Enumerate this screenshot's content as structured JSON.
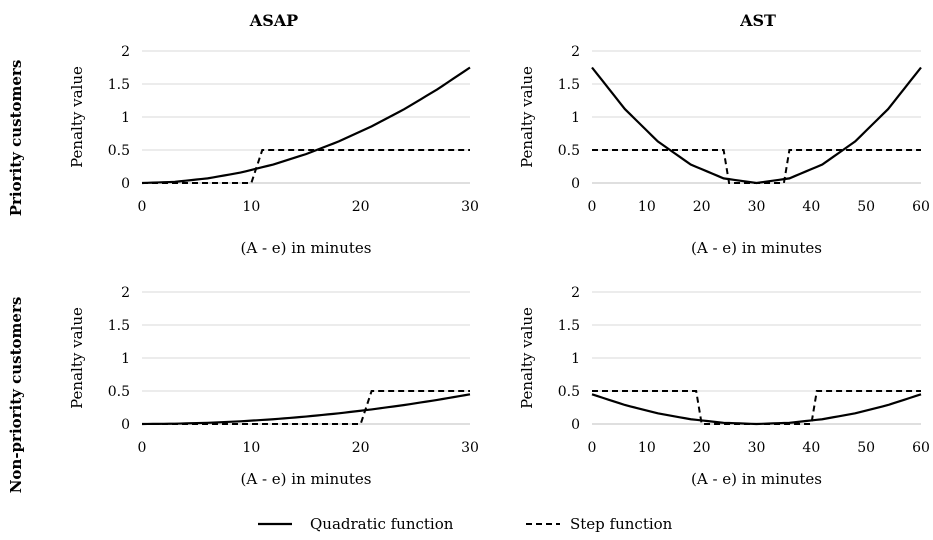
{
  "column_titles": [
    "ASAP",
    "AST"
  ],
  "row_titles": [
    "Priority customers",
    "Non-priority customers"
  ],
  "legend": {
    "quadratic_label": "Quadratic function",
    "step_label": "Step function"
  },
  "chart_data": [
    {
      "type": "line",
      "panel": "priority-asap",
      "xlabel": "(A - e) in minutes",
      "ylabel": "Penalty value",
      "xlim": [
        0,
        30
      ],
      "ylim": [
        0,
        2
      ],
      "xticks": [
        0,
        10,
        20,
        30
      ],
      "yticks": [
        0,
        0.5,
        1,
        1.5,
        2
      ],
      "ytick_labels": [
        "0",
        "0.5",
        "1",
        "1.5",
        "2"
      ],
      "grid": "horizontal",
      "series": [
        {
          "name": "Quadratic function",
          "style": "solid",
          "x": [
            0,
            3,
            6,
            9,
            12,
            15,
            18,
            21,
            24,
            27,
            30
          ],
          "y": [
            0,
            0.0175,
            0.07,
            0.1575,
            0.28,
            0.4375,
            0.63,
            0.8575,
            1.12,
            1.4175,
            1.75
          ]
        },
        {
          "name": "Step function",
          "style": "dashed",
          "x": [
            0,
            10,
            11,
            30
          ],
          "y": [
            0,
            0,
            0.5,
            0.5
          ]
        }
      ]
    },
    {
      "type": "line",
      "panel": "priority-ast",
      "xlabel": "(A - e) in minutes",
      "ylabel": "Penalty value",
      "xlim": [
        0,
        60
      ],
      "ylim": [
        0,
        2
      ],
      "xticks": [
        0,
        10,
        20,
        30,
        40,
        50,
        60
      ],
      "yticks": [
        0,
        0.5,
        1,
        1.5,
        2
      ],
      "ytick_labels": [
        "0",
        "0.5",
        "1",
        "1.5",
        "2"
      ],
      "grid": "horizontal",
      "series": [
        {
          "name": "Quadratic function",
          "style": "solid",
          "x": [
            0,
            6,
            12,
            18,
            24,
            30,
            36,
            42,
            48,
            54,
            60
          ],
          "y": [
            1.75,
            1.12,
            0.63,
            0.28,
            0.07,
            0,
            0.07,
            0.28,
            0.63,
            1.12,
            1.75
          ]
        },
        {
          "name": "Step function",
          "style": "dashed",
          "x": [
            0,
            24,
            25,
            35,
            36,
            60
          ],
          "y": [
            0.5,
            0.5,
            0,
            0,
            0.5,
            0.5
          ]
        }
      ]
    },
    {
      "type": "line",
      "panel": "nonpriority-asap",
      "xlabel": "(A - e) in minutes",
      "ylabel": "Penalty value",
      "xlim": [
        0,
        30
      ],
      "ylim": [
        0,
        2
      ],
      "xticks": [
        0,
        10,
        20,
        30
      ],
      "yticks": [
        0,
        0.5,
        1,
        1.5,
        2
      ],
      "ytick_labels": [
        "0",
        "0.5",
        "1",
        "1.5",
        "2"
      ],
      "grid": "horizontal",
      "series": [
        {
          "name": "Quadratic function",
          "style": "solid",
          "x": [
            0,
            3,
            6,
            9,
            12,
            15,
            18,
            21,
            24,
            27,
            30
          ],
          "y": [
            0,
            0.0045,
            0.018,
            0.0405,
            0.072,
            0.1125,
            0.162,
            0.2205,
            0.288,
            0.3645,
            0.45
          ]
        },
        {
          "name": "Step function",
          "style": "dashed",
          "x": [
            0,
            20,
            21,
            30
          ],
          "y": [
            0,
            0,
            0.5,
            0.5
          ]
        }
      ]
    },
    {
      "type": "line",
      "panel": "nonpriority-ast",
      "xlabel": "(A - e) in minutes",
      "ylabel": "Penalty value",
      "xlim": [
        0,
        60
      ],
      "ylim": [
        0,
        2
      ],
      "xticks": [
        0,
        10,
        20,
        30,
        40,
        50,
        60
      ],
      "yticks": [
        0,
        0.5,
        1,
        1.5,
        2
      ],
      "ytick_labels": [
        "0",
        "0.5",
        "1",
        "1.5",
        "2"
      ],
      "grid": "horizontal",
      "series": [
        {
          "name": "Quadratic function",
          "style": "solid",
          "x": [
            0,
            6,
            12,
            18,
            24,
            30,
            36,
            42,
            48,
            54,
            60
          ],
          "y": [
            0.45,
            0.288,
            0.162,
            0.072,
            0.018,
            0,
            0.018,
            0.072,
            0.162,
            0.288,
            0.45
          ]
        },
        {
          "name": "Step function",
          "style": "dashed",
          "x": [
            0,
            19,
            20,
            40,
            41,
            60
          ],
          "y": [
            0.5,
            0.5,
            0,
            0,
            0.5,
            0.5
          ]
        }
      ]
    }
  ]
}
